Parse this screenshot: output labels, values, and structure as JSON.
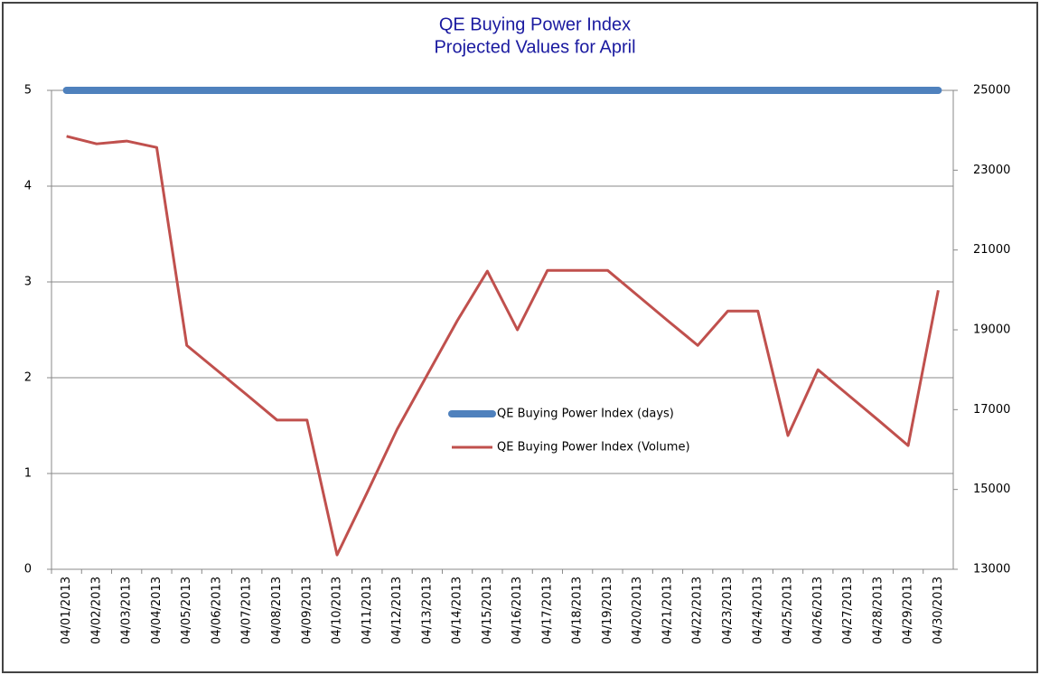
{
  "chart_data": {
    "type": "line",
    "title": "QE Buying Power Index",
    "subtitle": "Projected Values for April",
    "categories": [
      "04/01/2013",
      "04/02/2013",
      "04/03/2013",
      "04/04/2013",
      "04/05/2013",
      "04/06/2013",
      "04/07/2013",
      "04/08/2013",
      "04/09/2013",
      "04/10/2013",
      "04/11/2013",
      "04/12/2013",
      "04/13/2013",
      "04/14/2013",
      "04/15/2013",
      "04/16/2013",
      "04/17/2013",
      "04/18/2013",
      "04/19/2013",
      "04/20/2013",
      "04/21/2013",
      "04/22/2013",
      "04/23/2013",
      "04/24/2013",
      "04/25/2013",
      "04/26/2013",
      "04/27/2013",
      "04/28/2013",
      "04/29/2013",
      "04/30/2013"
    ],
    "series": [
      {
        "name": "QE Buying Power Index (days)",
        "color": "#4f81bd",
        "axis": "y",
        "values": [
          5,
          5,
          5,
          5,
          5,
          5,
          5,
          5,
          5,
          5,
          5,
          5,
          5,
          5,
          5,
          5,
          5,
          5,
          5,
          5,
          5,
          5,
          5,
          5,
          5,
          5,
          5,
          5,
          5,
          5
        ]
      },
      {
        "name": "QE Buying Power Index (Volume)",
        "color": "#c0504d",
        "axis": "y2",
        "values": [
          23850,
          23660,
          23730,
          23570,
          18610,
          17990,
          17370,
          16740,
          16740,
          13360,
          14920,
          16510,
          17870,
          19230,
          20470,
          19000,
          20490,
          20490,
          20490,
          19860,
          19230,
          18610,
          19470,
          19470,
          16350,
          18000,
          17370,
          16740,
          16100,
          19990
        ]
      }
    ],
    "ylim": [
      0,
      5
    ],
    "yticks": [
      0,
      1,
      2,
      3,
      4,
      5
    ],
    "y2lim": [
      13000,
      25000
    ],
    "y2ticks": [
      13000,
      15000,
      17000,
      19000,
      21000,
      23000,
      25000
    ],
    "grid": true,
    "legend": "center"
  }
}
